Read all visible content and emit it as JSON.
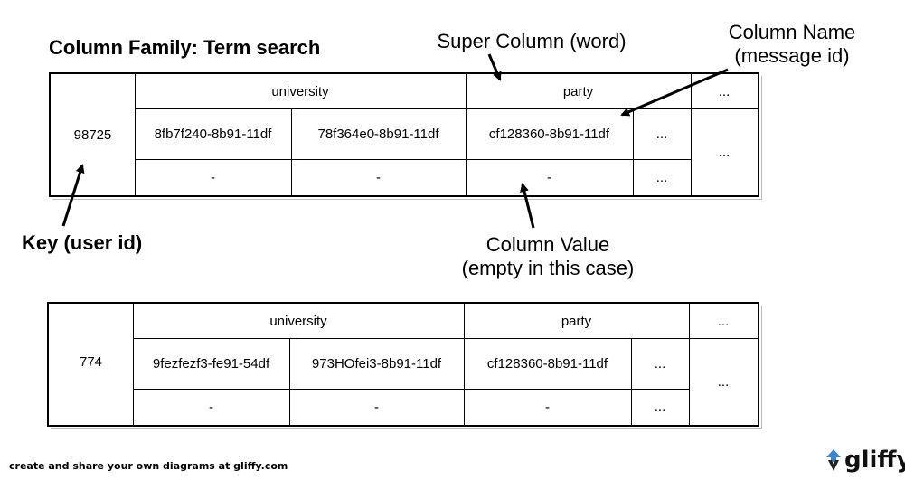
{
  "title": "Column Family: Term search",
  "annotations": {
    "super_column": "Super Column (word)",
    "column_name_line1": "Column Name",
    "column_name_line2": "(message id)",
    "key": "Key (user id)",
    "column_value_line1": "Column Value",
    "column_value_line2": "(empty in this case)"
  },
  "rows": [
    {
      "key": "98725",
      "super_columns": [
        "university",
        "party",
        "..."
      ],
      "column_names": [
        "8fb7f240-8b91-11df",
        "78f364e0-8b91-11df",
        "cf128360-8b91-11df",
        "...",
        "..."
      ],
      "column_values": [
        "-",
        "-",
        "-",
        "..."
      ]
    },
    {
      "key": "774",
      "super_columns": [
        "university",
        "party",
        "..."
      ],
      "column_names": [
        "9fezfezf3-fe91-54df",
        "973HOfei3-8b91-11df",
        "cf128360-8b91-11df",
        "...",
        "..."
      ],
      "column_values": [
        "-",
        "-",
        "-",
        "..."
      ]
    }
  ],
  "footer": "create and share your own diagrams at gliffy.com",
  "logo": "gliffy"
}
